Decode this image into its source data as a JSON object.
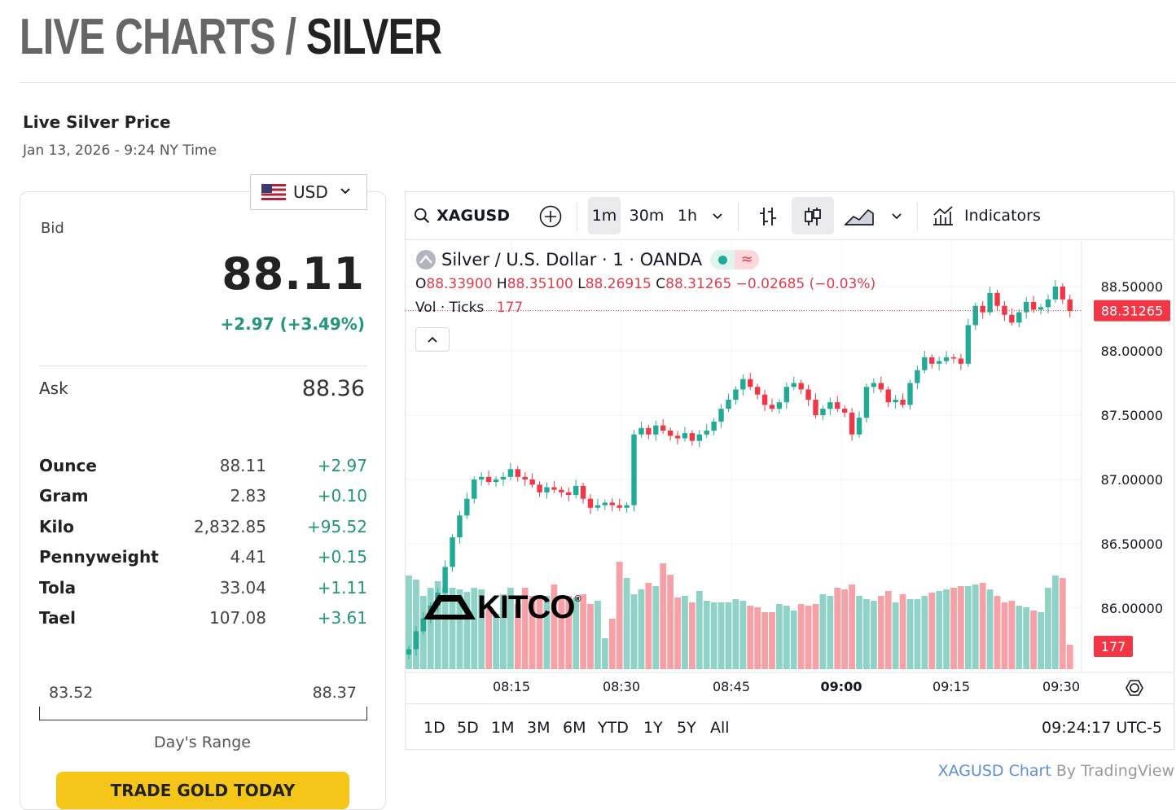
{
  "page_title": {
    "prefix": "LIVE CHARTS /",
    "name": "SILVER"
  },
  "price_panel": {
    "title": "Live Silver Price",
    "datetime": "Jan 13, 2026 - 9:24 NY Time",
    "currency": "USD",
    "bid_label": "Bid",
    "bid_value": "88.11",
    "change": "+2.97 (+3.49%)",
    "ask_label": "Ask",
    "ask_value": "88.36",
    "weights": [
      {
        "name": "Ounce",
        "price": "88.11",
        "change": "+2.97"
      },
      {
        "name": "Gram",
        "price": "2.83",
        "change": "+0.10"
      },
      {
        "name": "Kilo",
        "price": "2,832.85",
        "change": "+95.52"
      },
      {
        "name": "Pennyweight",
        "price": "4.41",
        "change": "+0.15"
      },
      {
        "name": "Tola",
        "price": "33.04",
        "change": "+1.11"
      },
      {
        "name": "Tael",
        "price": "107.08",
        "change": "+3.61"
      }
    ],
    "day_range_low": "83.52",
    "day_range_high": "88.37",
    "day_range_label": "Day's Range",
    "trade_button": "TRADE GOLD TODAY"
  },
  "chart_toolbar": {
    "symbol": "XAGUSD",
    "intervals": [
      "1m",
      "30m",
      "1h"
    ],
    "selected_interval": "1m",
    "indicators": "Indicators"
  },
  "chart_legend": {
    "title": "Silver / U.S. Dollar · 1 · OANDA",
    "o_label": "O",
    "o": "88.33900",
    "h_label": "H",
    "h": "88.35100",
    "l_label": "L",
    "l": "88.26915",
    "c_label": "C",
    "c": "88.31265",
    "chg": "−0.02685 (−0.03%)",
    "vol_label": "Vol · Ticks",
    "vol": "177"
  },
  "chart_data": {
    "type": "candlestick",
    "symbol": "XAGUSD",
    "interval": "1m",
    "y_ticks": [
      "88.50000",
      "88.00000",
      "87.50000",
      "87.00000",
      "86.50000",
      "86.00000"
    ],
    "ylim": [
      85.6,
      88.7
    ],
    "x_ticks": [
      "08:15",
      "08:30",
      "08:45",
      "09:00",
      "09:15",
      "09:30"
    ],
    "last_price": "88.31265",
    "last_volume": "177",
    "series": [
      {
        "name": "price",
        "close": [
          85.68,
          85.82,
          85.92,
          86.02,
          86.12,
          86.32,
          86.55,
          86.72,
          86.85,
          87.0,
          87.02,
          86.98,
          87.0,
          87.02,
          87.08,
          87.02,
          87.0,
          86.96,
          86.9,
          86.94,
          86.92,
          86.9,
          86.88,
          86.95,
          86.85,
          86.78,
          86.8,
          86.82,
          86.8,
          86.78,
          86.8,
          87.35,
          87.4,
          87.35,
          87.42,
          87.38,
          87.34,
          87.32,
          87.36,
          87.3,
          87.35,
          87.38,
          87.45,
          87.55,
          87.62,
          87.7,
          87.78,
          87.72,
          87.66,
          87.58,
          87.55,
          87.6,
          87.72,
          87.75,
          87.7,
          87.62,
          87.5,
          87.55,
          87.6,
          87.55,
          87.52,
          87.35,
          87.48,
          87.72,
          87.75,
          87.7,
          87.6,
          87.62,
          87.58,
          87.75,
          87.85,
          87.95,
          87.9,
          87.92,
          87.95,
          87.94,
          87.9,
          88.2,
          88.35,
          88.3,
          88.45,
          88.35,
          88.28,
          88.22,
          88.3,
          88.38,
          88.32,
          88.34,
          88.4,
          88.5,
          88.4,
          88.31
        ]
      },
      {
        "name": "volume",
        "values": [
          115,
          110,
          90,
          100,
          108,
          100,
          100,
          98,
          95,
          100,
          98,
          75,
          68,
          92,
          100,
          80,
          100,
          90,
          90,
          90,
          104,
          90,
          90,
          88,
          92,
          80,
          84,
          38,
          62,
          132,
          112,
          92,
          98,
          106,
          102,
          130,
          116,
          88,
          90,
          82,
          96,
          84,
          82,
          82,
          82,
          86,
          84,
          78,
          76,
          70,
          70,
          80,
          78,
          72,
          80,
          78,
          80,
          92,
          90,
          100,
          98,
          104,
          90,
          86,
          84,
          90,
          96,
          82,
          92,
          86,
          86,
          90,
          94,
          96,
          98,
          100,
          102,
          102,
          104,
          106,
          98,
          90,
          82,
          84,
          78,
          76,
          72,
          70,
          100,
          115,
          112,
          30
        ]
      }
    ]
  },
  "chart_footer": {
    "ranges": [
      "1D",
      "5D",
      "1M",
      "3M",
      "6M",
      "YTD",
      "1Y",
      "5Y",
      "All"
    ],
    "time": "09:24:17 UTC-5"
  },
  "attribution": {
    "link": "XAGUSD Chart",
    "by": "By TradingView"
  },
  "watermark": "KITCO",
  "colors": {
    "up": "#22ab94",
    "down": "#f23645",
    "vol_up": "#8fd3c6",
    "vol_down": "#f6a1a8",
    "accent": "#f5c518"
  }
}
